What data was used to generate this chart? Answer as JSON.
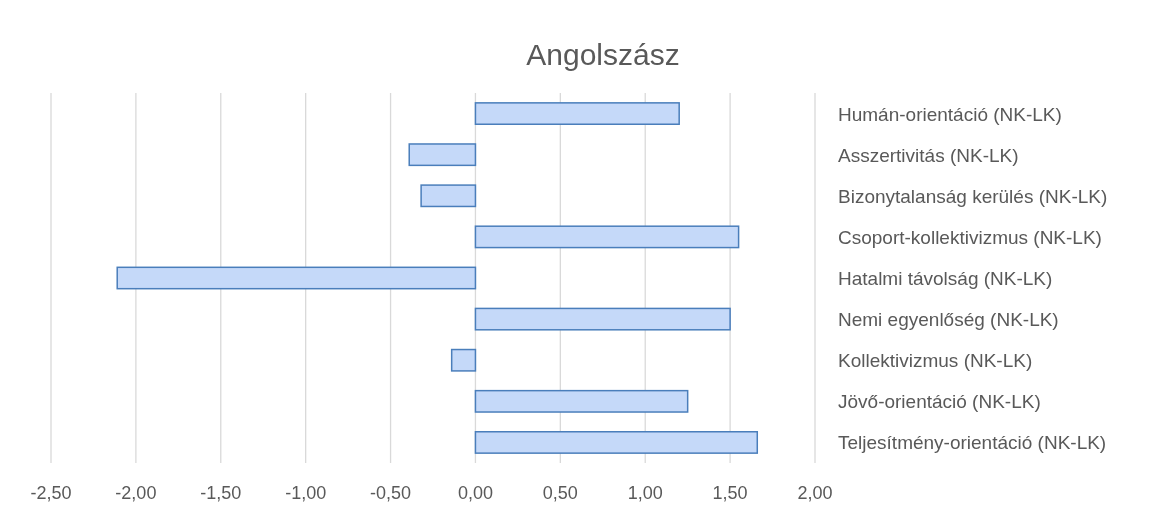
{
  "chart_data": {
    "type": "bar",
    "orientation": "horizontal",
    "title": "Angolszász",
    "categories": [
      "Humán-orientáció (NK-LK)",
      "Asszertivitás (NK-LK)",
      "Bizonytalanság kerülés (NK-LK)",
      "Csoport-kollektivizmus (NK-LK)",
      "Hatalmi távolság (NK-LK)",
      "Nemi egyenlőség (NK-LK)",
      "Kollektivizmus (NK-LK)",
      "Jövő-orientáció (NK-LK)",
      "Teljesítmény-orientáció (NK-LK)"
    ],
    "values": [
      1.2,
      -0.39,
      -0.32,
      1.55,
      -2.11,
      1.5,
      -0.14,
      1.25,
      1.66
    ],
    "color": "#c5d9f9",
    "xlim": [
      -2.5,
      2.0
    ],
    "xticks": [
      {
        "value": -2.5,
        "label": "-2,50"
      },
      {
        "value": -2.0,
        "label": "-2,00"
      },
      {
        "value": -1.5,
        "label": "-1,50"
      },
      {
        "value": -1.0,
        "label": "-1,00"
      },
      {
        "value": -0.5,
        "label": "-0,50"
      },
      {
        "value": 0,
        "label": "0,00"
      },
      {
        "value": 0.5,
        "label": "0,50"
      },
      {
        "value": 1.0,
        "label": "1,00"
      },
      {
        "value": 1.5,
        "label": "1,50"
      },
      {
        "value": 2.0,
        "label": "2,00"
      }
    ],
    "grid": "x"
  }
}
